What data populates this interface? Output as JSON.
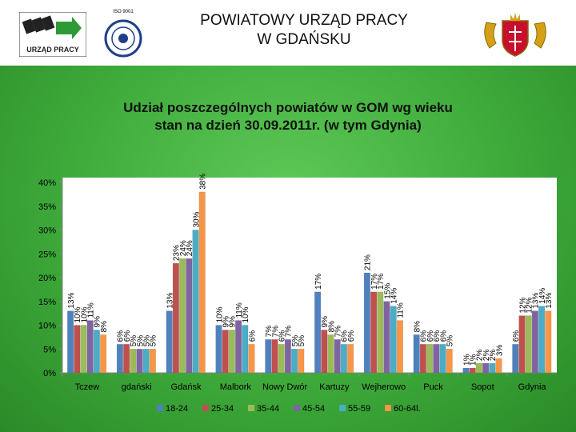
{
  "header": {
    "title_line1": "POWIATOWY URZĄD PRACY",
    "title_line2": "W GDAŃSKU",
    "logo_text": "URZĄD PRACY",
    "iso_text": "ISO 9001",
    "logo_icon": "urzad-pracy-logo-icon",
    "iso_icon": "iso-certificate-icon",
    "coat_icon": "gdansk-coat-of-arms-icon"
  },
  "chart_data": {
    "type": "bar",
    "title_line1": "Udział poszczególnych powiatów w GOM wg wieku",
    "title_line2": "stan na dzień 30.09.2011r. (w tym Gdynia)",
    "categories": [
      "Tczew",
      "gdański",
      "Gdańsk",
      "Malbork",
      "Nowy Dwór",
      "Kartuzy",
      "Wejherowo",
      "Puck",
      "Sopot",
      "Gdynia"
    ],
    "series": [
      {
        "name": "18-24",
        "color": "#4f81bd",
        "values": [
          13,
          6,
          13,
          10,
          7,
          17,
          21,
          8,
          1,
          6
        ]
      },
      {
        "name": "25-34",
        "color": "#c0504d",
        "values": [
          10,
          6,
          23,
          9,
          7,
          9,
          17,
          6,
          1,
          12
        ]
      },
      {
        "name": "35-44",
        "color": "#9bbb59",
        "values": [
          10,
          5,
          24,
          9,
          6,
          8,
          17,
          6,
          2,
          12
        ]
      },
      {
        "name": "45-54",
        "color": "#8064a2",
        "values": [
          11,
          5,
          24,
          11,
          7,
          7,
          15,
          6,
          2,
          13
        ]
      },
      {
        "name": "55-59",
        "color": "#4bacc6",
        "values": [
          9,
          5,
          30,
          10,
          5,
          6,
          14,
          6,
          2,
          14
        ]
      },
      {
        "name": "60-64l.",
        "color": "#f79646",
        "values": [
          8,
          5,
          38,
          6,
          5,
          6,
          11,
          5,
          3,
          13
        ]
      }
    ],
    "ylim": [
      0,
      40
    ],
    "yticks": [
      0,
      5,
      10,
      15,
      20,
      25,
      30,
      35,
      40
    ],
    "y_suffix": "%",
    "grid": false,
    "legend_position": "bottom"
  }
}
